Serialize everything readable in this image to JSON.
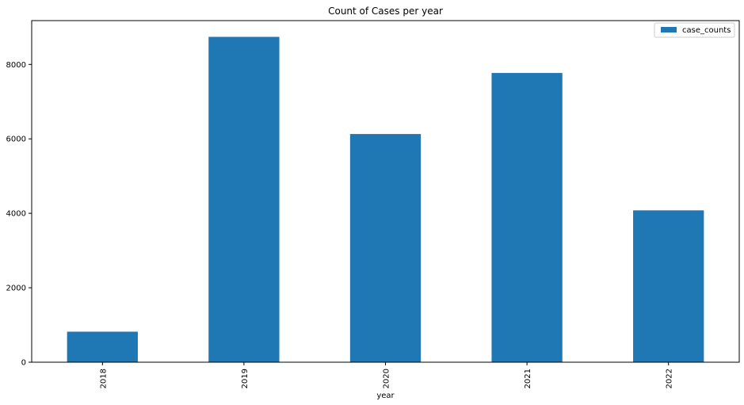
{
  "chart_data": {
    "type": "bar",
    "title": "Count of Cases per year",
    "xlabel": "year",
    "ylabel": "",
    "categories": [
      "2018",
      "2019",
      "2020",
      "2021",
      "2022"
    ],
    "series": [
      {
        "name": "case_counts",
        "values": [
          820,
          8740,
          6130,
          7770,
          4080
        ],
        "color": "#1f77b4"
      }
    ],
    "ylim": [
      0,
      9177
    ],
    "yticks": [
      0,
      2000,
      4000,
      6000,
      8000
    ],
    "grid": false,
    "legend_position": "top-right"
  }
}
